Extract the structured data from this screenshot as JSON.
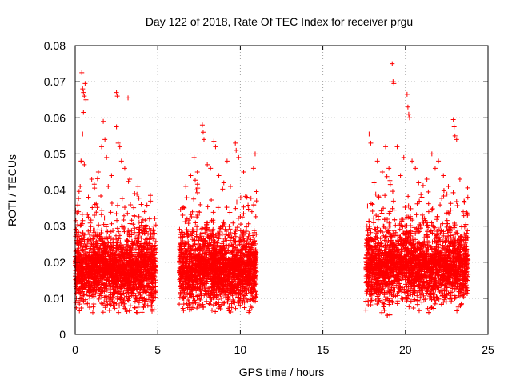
{
  "chart_data": {
    "type": "scatter",
    "title": "Day 122 of 2018, Rate Of TEC Index for receiver prgu",
    "xlabel": "GPS time / hours",
    "ylabel": "ROTI / TECUs",
    "xlim": [
      0,
      25
    ],
    "ylim": [
      0,
      0.08
    ],
    "x_ticks": [
      0,
      5,
      10,
      15,
      20,
      25
    ],
    "x_tick_labels": [
      "0",
      "5",
      "10",
      "15",
      "20",
      "25"
    ],
    "y_ticks": [
      0,
      0.01,
      0.02,
      0.03,
      0.04,
      0.05,
      0.06,
      0.07,
      0.08
    ],
    "y_tick_labels": [
      "0",
      "0.01",
      "0.02",
      "0.03",
      "0.04",
      "0.05",
      "0.06",
      "0.07",
      "0.08"
    ],
    "grid": true,
    "marker": "+",
    "color": "#ff0000",
    "data_segments": [
      {
        "x_start": 0.0,
        "x_end": 4.9,
        "typical_min": 0.006,
        "typical_max": 0.03,
        "band_center": 0.017
      },
      {
        "x_start": 6.3,
        "x_end": 11.0,
        "typical_min": 0.006,
        "typical_max": 0.03,
        "band_center": 0.017
      },
      {
        "x_start": 17.6,
        "x_end": 23.8,
        "typical_min": 0.005,
        "typical_max": 0.03,
        "band_center": 0.018
      }
    ],
    "series": [
      {
        "name": "ROTI",
        "points": [
          [
            0.1,
            0.026
          ],
          [
            0.2,
            0.034
          ],
          [
            0.3,
            0.041
          ],
          [
            0.35,
            0.048
          ],
          [
            0.4,
            0.0725
          ],
          [
            0.45,
            0.068
          ],
          [
            0.5,
            0.067
          ],
          [
            0.55,
            0.066
          ],
          [
            0.6,
            0.0695
          ],
          [
            0.65,
            0.065
          ],
          [
            0.5,
            0.0615
          ],
          [
            0.45,
            0.0555
          ],
          [
            0.4,
            0.048
          ],
          [
            0.55,
            0.047
          ],
          [
            0.8,
            0.038
          ],
          [
            1.0,
            0.043
          ],
          [
            1.2,
            0.036
          ],
          [
            1.4,
            0.045
          ],
          [
            1.6,
            0.052
          ],
          [
            1.7,
            0.059
          ],
          [
            1.8,
            0.054
          ],
          [
            1.9,
            0.049
          ],
          [
            2.0,
            0.041
          ],
          [
            2.2,
            0.044
          ],
          [
            2.5,
            0.0575
          ],
          [
            2.6,
            0.053
          ],
          [
            2.7,
            0.052
          ],
          [
            2.8,
            0.048
          ],
          [
            2.5,
            0.067
          ],
          [
            2.55,
            0.066
          ],
          [
            3.2,
            0.0655
          ],
          [
            3.0,
            0.046
          ],
          [
            3.3,
            0.043
          ],
          [
            3.6,
            0.039
          ],
          [
            3.8,
            0.041
          ],
          [
            4.0,
            0.036
          ],
          [
            4.2,
            0.034
          ],
          [
            4.5,
            0.032
          ],
          [
            4.8,
            0.028
          ],
          [
            6.5,
            0.035
          ],
          [
            6.7,
            0.041
          ],
          [
            7.0,
            0.044
          ],
          [
            7.2,
            0.049
          ],
          [
            7.4,
            0.045
          ],
          [
            7.7,
            0.058
          ],
          [
            7.75,
            0.056
          ],
          [
            7.8,
            0.054
          ],
          [
            8.0,
            0.047
          ],
          [
            8.2,
            0.046
          ],
          [
            8.4,
            0.0535
          ],
          [
            8.5,
            0.052
          ],
          [
            8.7,
            0.044
          ],
          [
            9.0,
            0.042
          ],
          [
            9.2,
            0.048
          ],
          [
            9.4,
            0.041
          ],
          [
            9.7,
            0.053
          ],
          [
            9.75,
            0.051
          ],
          [
            9.9,
            0.049
          ],
          [
            10.2,
            0.045
          ],
          [
            10.4,
            0.038
          ],
          [
            10.7,
            0.034
          ],
          [
            10.8,
            0.046
          ],
          [
            10.9,
            0.05
          ],
          [
            17.8,
            0.0555
          ],
          [
            17.9,
            0.053
          ],
          [
            18.1,
            0.042
          ],
          [
            18.3,
            0.048
          ],
          [
            18.6,
            0.045
          ],
          [
            18.8,
            0.052
          ],
          [
            19.0,
            0.046
          ],
          [
            19.2,
            0.075
          ],
          [
            19.25,
            0.07
          ],
          [
            19.3,
            0.0695
          ],
          [
            19.5,
            0.052
          ],
          [
            19.7,
            0.044
          ],
          [
            19.9,
            0.049
          ],
          [
            20.1,
            0.0665
          ],
          [
            20.15,
            0.063
          ],
          [
            20.2,
            0.061
          ],
          [
            20.25,
            0.06
          ],
          [
            20.4,
            0.048
          ],
          [
            20.6,
            0.046
          ],
          [
            20.8,
            0.042
          ],
          [
            21.0,
            0.038
          ],
          [
            21.3,
            0.043
          ],
          [
            21.6,
            0.05
          ],
          [
            21.8,
            0.046
          ],
          [
            22.0,
            0.048
          ],
          [
            22.3,
            0.044
          ],
          [
            22.6,
            0.041
          ],
          [
            22.9,
            0.0595
          ],
          [
            22.95,
            0.0575
          ],
          [
            23.0,
            0.055
          ],
          [
            23.1,
            0.054
          ],
          [
            23.3,
            0.043
          ],
          [
            23.5,
            0.034
          ],
          [
            23.7,
            0.028
          ]
        ]
      }
    ]
  }
}
